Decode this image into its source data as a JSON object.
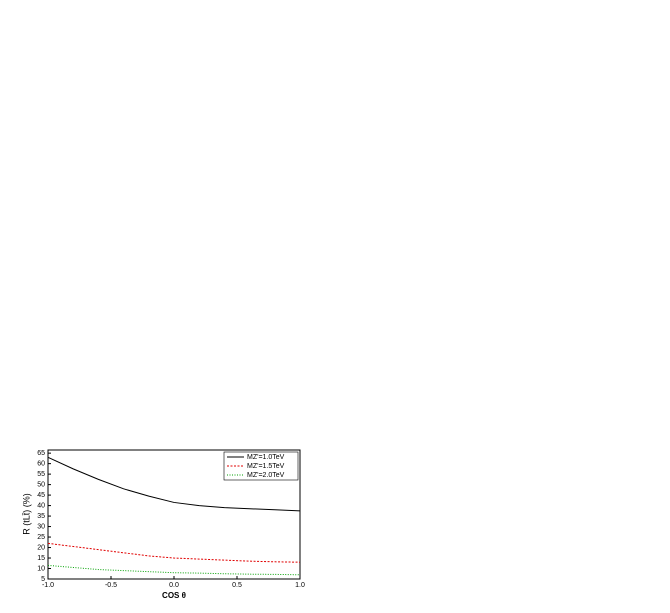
{
  "chart_data": {
    "type": "line",
    "xlabel": "COS θ",
    "ylabel": "R (tLt̄) (%)",
    "x": [
      -1.0,
      -0.8,
      -0.6,
      -0.4,
      -0.2,
      0.0,
      0.2,
      0.4,
      0.6,
      0.8,
      1.0
    ],
    "series": [
      {
        "name": "MZ'=1.0TeV",
        "color": "#000000",
        "dash": "none",
        "values": [
          63,
          57.5,
          52.5,
          48,
          44.5,
          41.5,
          40,
          39,
          38.5,
          38,
          37.5
        ]
      },
      {
        "name": "MZ'=1.5TeV",
        "color": "#e00000",
        "dash": "2,1.5",
        "values": [
          22,
          20.5,
          19,
          17.5,
          16,
          15,
          14.5,
          14,
          13.5,
          13.2,
          13
        ]
      },
      {
        "name": "MZ'=2.0TeV",
        "color": "#00a000",
        "dash": "1,1.5",
        "values": [
          11.5,
          10.5,
          9.5,
          9,
          8.5,
          8,
          7.8,
          7.5,
          7.3,
          7.2,
          7
        ]
      }
    ],
    "xlim": [
      -1.0,
      1.0
    ],
    "xticks": [
      {
        "value": -1,
        "label": "-1.0"
      },
      -0.5,
      {
        "value": 0,
        "label": "0.0"
      },
      0.5,
      {
        "value": 1,
        "label": "1.0"
      }
    ],
    "ylim": [
      5,
      66.5
    ],
    "yticks": [
      5,
      10,
      15,
      20,
      25,
      30,
      35,
      40,
      45,
      50,
      55,
      60,
      65
    ],
    "legend": "upper right"
  }
}
